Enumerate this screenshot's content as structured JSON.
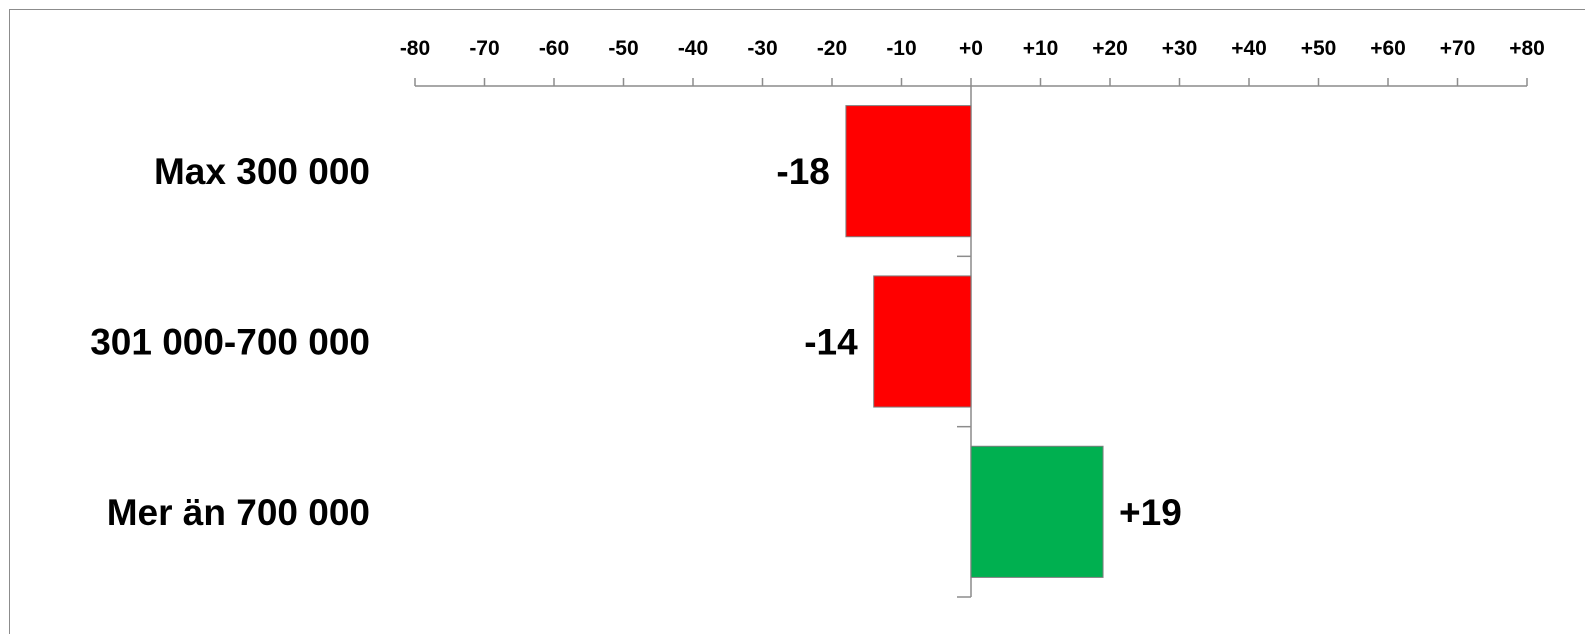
{
  "chart_data": {
    "type": "bar",
    "orientation": "horizontal",
    "categories": [
      "Max 300 000",
      "301 000-700 000",
      "Mer än 700 000"
    ],
    "values": [
      -18,
      -14,
      19
    ],
    "data_labels": [
      "-18",
      "-14",
      "+19"
    ],
    "colors": [
      "#ff0000",
      "#ff0000",
      "#00b050"
    ],
    "xlim": [
      -80,
      80
    ],
    "x_ticks": [
      -80,
      -70,
      -60,
      -50,
      -40,
      -30,
      -20,
      -10,
      0,
      10,
      20,
      30,
      40,
      50,
      60,
      70,
      80
    ],
    "x_tick_labels": [
      "-80",
      "-70",
      "-60",
      "-50",
      "-40",
      "-30",
      "-20",
      "-10",
      "+0",
      "+10",
      "+20",
      "+30",
      "+40",
      "+50",
      "+60",
      "+70",
      "+80"
    ],
    "x_axis_position": "top",
    "grid": false,
    "legend": "none",
    "title": "",
    "xlabel": "",
    "ylabel": ""
  }
}
